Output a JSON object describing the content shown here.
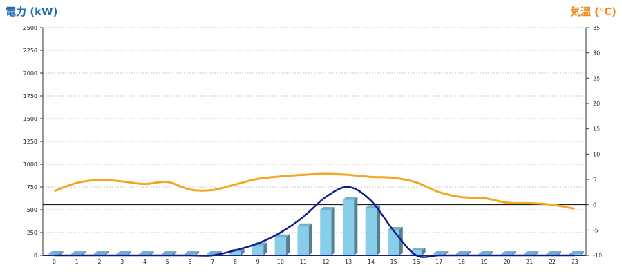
{
  "chart_data": {
    "type": "bar",
    "ylabel": "電力 (kW)",
    "y2label": "気温 (℃)",
    "categories": [
      "0",
      "1",
      "2",
      "3",
      "4",
      "5",
      "6",
      "7",
      "8",
      "9",
      "10",
      "11",
      "12",
      "13",
      "14",
      "15",
      "16",
      "17",
      "18",
      "19",
      "20",
      "21",
      "22",
      "23"
    ],
    "ylim": [
      0,
      2500
    ],
    "yticks": [
      0,
      250,
      500,
      750,
      1000,
      1250,
      1500,
      1750,
      2000,
      2250,
      2500
    ],
    "y2lim": [
      -10,
      35
    ],
    "y2ticks": [
      -10,
      -5,
      0,
      5,
      10,
      15,
      20,
      25,
      30,
      35
    ],
    "grid": true,
    "series": [
      {
        "kind": "bar",
        "axis": "left",
        "color": "#87ceeb",
        "values": [
          0,
          0,
          0,
          0,
          0,
          0,
          0,
          0,
          40,
          110,
          200,
          320,
          500,
          610,
          520,
          280,
          50,
          0,
          0,
          0,
          0,
          0,
          0,
          0
        ]
      },
      {
        "kind": "line",
        "axis": "left",
        "color": "#0c1a8c",
        "values": [
          0,
          0,
          0,
          0,
          0,
          0,
          0,
          0,
          55,
          130,
          250,
          420,
          640,
          750,
          600,
          270,
          0,
          0,
          0,
          0,
          0,
          0,
          0,
          0
        ]
      },
      {
        "kind": "line",
        "axis": "right",
        "color": "#f5a623",
        "values": [
          2.7,
          4.3,
          4.9,
          4.6,
          4.1,
          4.5,
          3.0,
          2.9,
          4.0,
          5.1,
          5.6,
          5.9,
          6.1,
          5.9,
          5.5,
          5.3,
          4.4,
          2.5,
          1.5,
          1.3,
          0.4,
          0.3,
          0.0,
          -0.8
        ]
      }
    ]
  }
}
